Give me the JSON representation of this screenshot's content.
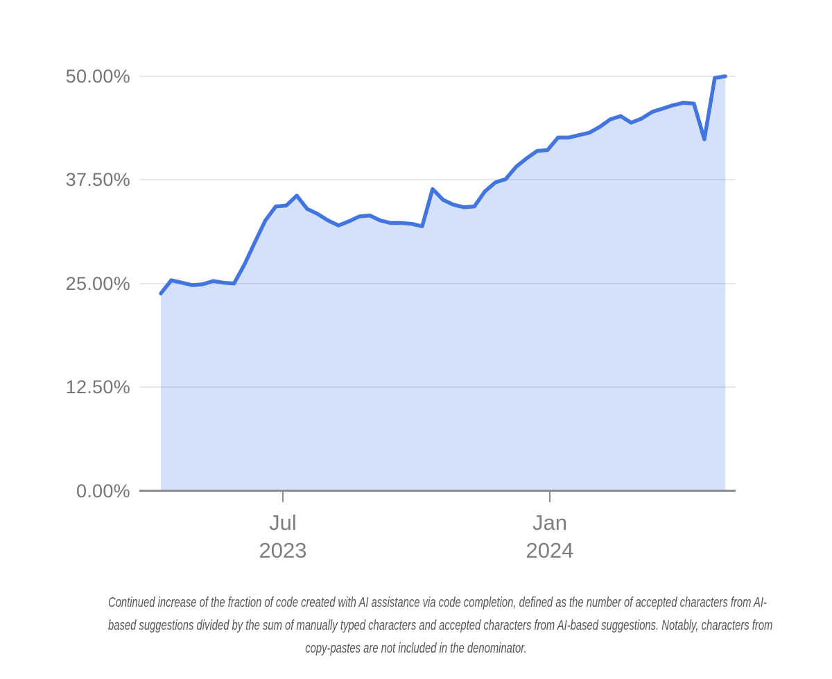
{
  "chart_data": {
    "type": "area",
    "series_name": "Fraction of code created with AI assistance via code completion",
    "unit": "%",
    "ylim": [
      0,
      50
    ],
    "grid": true,
    "legend_position": "none",
    "line_color": "#4275e0",
    "fill_color": "rgba(66,117,224,0.22)",
    "y_tick_labels": [
      "50.00%",
      "37.50%",
      "25.00%",
      "12.50%",
      "0.00%"
    ],
    "x_ticks": [
      {
        "month": "Jul",
        "year": "2023"
      },
      {
        "month": "Jan",
        "year": "2024"
      }
    ],
    "dates": [
      "2023-04-09",
      "2023-04-16",
      "2023-04-23",
      "2023-04-30",
      "2023-05-07",
      "2023-05-14",
      "2023-05-21",
      "2023-05-28",
      "2023-06-04",
      "2023-06-11",
      "2023-06-18",
      "2023-06-25",
      "2023-07-02",
      "2023-07-09",
      "2023-07-16",
      "2023-07-23",
      "2023-07-30",
      "2023-08-06",
      "2023-08-13",
      "2023-08-20",
      "2023-08-27",
      "2023-09-03",
      "2023-09-10",
      "2023-09-17",
      "2023-09-24",
      "2023-10-01",
      "2023-10-08",
      "2023-10-15",
      "2023-10-22",
      "2023-10-29",
      "2023-11-05",
      "2023-11-12",
      "2023-11-19",
      "2023-11-26",
      "2023-12-03",
      "2023-12-10",
      "2023-12-17",
      "2023-12-24",
      "2023-12-31",
      "2024-01-07",
      "2024-01-14",
      "2024-01-21",
      "2024-01-28",
      "2024-02-04",
      "2024-02-11",
      "2024-02-18",
      "2024-02-25",
      "2024-03-03",
      "2024-03-10",
      "2024-03-17",
      "2024-03-24",
      "2024-03-31",
      "2024-04-07",
      "2024-04-14",
      "2024-04-21"
    ],
    "values": [
      23.8,
      25.4,
      25.1,
      24.8,
      24.9,
      25.3,
      25.1,
      25.0,
      27.3,
      30.0,
      32.6,
      34.3,
      34.4,
      35.6,
      34.0,
      33.4,
      32.6,
      32.0,
      32.5,
      33.1,
      33.2,
      32.6,
      32.3,
      32.3,
      32.2,
      31.9,
      36.4,
      35.1,
      34.5,
      34.2,
      34.3,
      36.1,
      37.2,
      37.6,
      39.1,
      40.1,
      41.0,
      41.1,
      42.6,
      42.6,
      42.9,
      43.2,
      43.9,
      44.8,
      45.2,
      44.4,
      44.9,
      45.7,
      46.1,
      46.5,
      46.8,
      46.7,
      42.4,
      49.8,
      50.0
    ]
  },
  "caption": {
    "lines": [
      "Continued increase of the fraction of code created with AI assistance via code completion, defined as the number of accepted characters from AI-",
      "based suggestions divided by the sum of manually typed characters and accepted characters from AI-based suggestions. Notably, characters from",
      "copy-pastes are not included in the denominator."
    ]
  }
}
